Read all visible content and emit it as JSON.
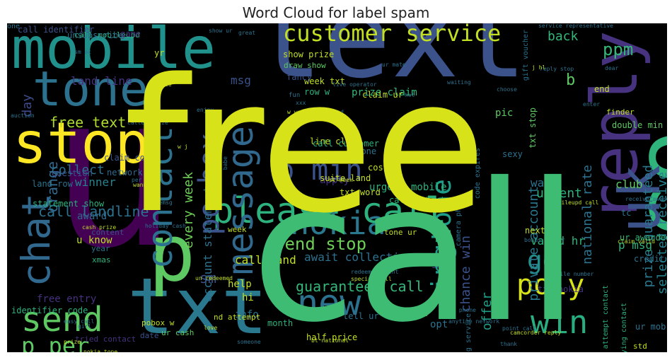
{
  "title": "Word Cloud for label spam",
  "words": [
    {
      "text": "free",
      "color": "#d8e219",
      "big": true
    },
    {
      "text": "call",
      "color": "#3fbc73",
      "big": true
    },
    {
      "text": "text",
      "color": "#3b528b"
    },
    {
      "text": "u",
      "color": "#440154"
    },
    {
      "text": "mobile",
      "color": "#21918c"
    },
    {
      "text": "txt",
      "color": "#2a788e"
    },
    {
      "text": "stop",
      "color": "#fde725"
    },
    {
      "text": "reply",
      "color": "#46327e"
    },
    {
      "text": "tone",
      "color": "#2c728e"
    },
    {
      "text": "co",
      "color": "#2fb47c"
    },
    {
      "text": "uk",
      "color": "#3b528b"
    },
    {
      "text": "p",
      "color": "#5ec962"
    },
    {
      "text": "please call",
      "color": "#2db27d"
    },
    {
      "text": "message",
      "color": "#31688e"
    },
    {
      "text": "nokia",
      "color": "#2a788e"
    },
    {
      "text": "new",
      "color": "#2c728e"
    },
    {
      "text": "send",
      "color": "#5ec962"
    },
    {
      "text": "chat",
      "color": "#31688e"
    },
    {
      "text": "contact",
      "color": "#2c728e"
    },
    {
      "text": "po box",
      "color": "#3b528b"
    },
    {
      "text": "p min",
      "color": "#3b528b"
    },
    {
      "text": "customer service",
      "color": "#c2df23"
    },
    {
      "text": "win",
      "color": "#28ae80"
    },
    {
      "text": "poly",
      "color": "#d8e219"
    },
    {
      "text": "go",
      "color": "#21918c"
    },
    {
      "text": "ringtone",
      "color": "#1f9e89"
    },
    {
      "text": "p per",
      "color": "#5ec962"
    },
    {
      "text": "ppm",
      "color": "#35b779"
    },
    {
      "text": "claim call",
      "color": "#2a788e"
    },
    {
      "text": "send stop",
      "color": "#6ece58"
    },
    {
      "text": "guaranteed call",
      "color": "#35b779"
    },
    {
      "text": "free text",
      "color": "#addc30"
    },
    {
      "text": "call landline",
      "color": "#2c728e"
    },
    {
      "text": "chance win",
      "color": "#3b528b"
    },
    {
      "text": "offer",
      "color": "#1f9e89"
    },
    {
      "text": "prize guaranteed",
      "color": "#2a788e"
    },
    {
      "text": "selected receive",
      "color": "#26828e"
    },
    {
      "text": "private account",
      "color": "#2a788e"
    },
    {
      "text": "national rate",
      "color": "#2c728e"
    },
    {
      "text": "every week",
      "color": "#6ece58"
    },
    {
      "text": "account statement",
      "color": "#2c728e"
    },
    {
      "text": "sm",
      "color": "#3b528b"
    },
    {
      "text": "orange",
      "color": "#31688e"
    },
    {
      "text": "collect",
      "color": "#2c728e"
    },
    {
      "text": "winner",
      "color": "#26828e"
    },
    {
      "text": "land line",
      "color": "#46327e"
    },
    {
      "text": "day",
      "color": "#3e4989"
    },
    {
      "text": "msg",
      "color": "#3b528b"
    },
    {
      "text": "urgent",
      "color": "#2db27d"
    },
    {
      "text": "club",
      "color": "#5ec962"
    },
    {
      "text": "want",
      "color": "#2c728e"
    },
    {
      "text": "valid hr",
      "color": "#2db27d"
    },
    {
      "text": "p msg",
      "color": "#2db27d"
    },
    {
      "text": "back",
      "color": "#35b779"
    },
    {
      "text": "b",
      "color": "#5ec962"
    },
    {
      "text": "call land",
      "color": "#c2df23"
    },
    {
      "text": "await collection",
      "color": "#2c728e"
    },
    {
      "text": "urgent mobile",
      "color": "#2db27d"
    },
    {
      "text": "prize claim",
      "color": "#35b779"
    },
    {
      "text": "name",
      "color": "#2db27d"
    },
    {
      "text": "pic",
      "color": "#5ec962"
    },
    {
      "text": "help",
      "color": "#c2df23"
    },
    {
      "text": "hi",
      "color": "#c2df23"
    },
    {
      "text": "award",
      "color": "#31688e"
    },
    {
      "text": "u know",
      "color": "#c2df23"
    },
    {
      "text": "free entry",
      "color": "#46327e"
    },
    {
      "text": "show prize",
      "color": "#c2df23"
    },
    {
      "text": "draw show",
      "color": "#5ec962"
    },
    {
      "text": "week txt",
      "color": "#c2df23"
    },
    {
      "text": "row w",
      "color": "#2db27d"
    },
    {
      "text": "line claim",
      "color": "#c2df23"
    },
    {
      "text": "call customer",
      "color": "#2db27d"
    },
    {
      "text": "claim code",
      "color": "#3b528b"
    },
    {
      "text": "network min",
      "color": "#31688e"
    },
    {
      "text": "question",
      "color": "#3b528b"
    },
    {
      "text": "land row",
      "color": "#2c728e"
    },
    {
      "text": "statement show",
      "color": "#2db27d"
    },
    {
      "text": "identifier code",
      "color": "#2db27d"
    },
    {
      "text": "call identifier",
      "color": "#3b528b"
    },
    {
      "text": "call mobileupd",
      "color": "#2db27d"
    },
    {
      "text": "unsubscribe",
      "color": "#2c728e"
    },
    {
      "text": "game",
      "color": "#46327e"
    },
    {
      "text": "yr",
      "color": "#c2df23"
    },
    {
      "text": "next",
      "color": "#c2df23"
    },
    {
      "text": "ur awarded",
      "color": "#35b779"
    },
    {
      "text": "tone ur",
      "color": "#c2df23"
    },
    {
      "text": "see",
      "color": "#3e4989"
    },
    {
      "text": "opt",
      "color": "#2c728e"
    },
    {
      "text": "sexy",
      "color": "#2c728e"
    },
    {
      "text": "phone",
      "color": "#2c728e"
    },
    {
      "text": "apply",
      "color": "#46327e"
    },
    {
      "text": "cost p",
      "color": "#c2df23"
    },
    {
      "text": "txt word",
      "color": "#c2df23"
    },
    {
      "text": "call optout",
      "color": "#2db27d"
    },
    {
      "text": "suite land",
      "color": "#c2df23"
    },
    {
      "text": "week",
      "color": "#c2df23"
    },
    {
      "text": "info",
      "color": "#2c728e"
    },
    {
      "text": "month",
      "color": "#2db27d"
    },
    {
      "text": "nd attempt",
      "color": "#c2df23"
    },
    {
      "text": "ur cash",
      "color": "#5ec962"
    },
    {
      "text": "pobox w",
      "color": "#c2df23"
    },
    {
      "text": "date",
      "color": "#3b528b"
    },
    {
      "text": "tried contact",
      "color": "#46327e"
    },
    {
      "text": "xmas",
      "color": "#2db27d"
    },
    {
      "text": "year",
      "color": "#2c728e"
    },
    {
      "text": "content",
      "color": "#3b528b"
    },
    {
      "text": "credit",
      "color": "#2c728e"
    },
    {
      "text": "top",
      "color": "#c2df23"
    },
    {
      "text": "std",
      "color": "#c2df23"
    },
    {
      "text": "ur mob",
      "color": "#2c728e"
    },
    {
      "text": "double min",
      "color": "#5ec962"
    },
    {
      "text": "finder",
      "color": "#c2df23"
    },
    {
      "text": "end",
      "color": "#c2df23"
    },
    {
      "text": "txt stop",
      "color": "#5ec962"
    },
    {
      "text": "claim ur",
      "color": "#c2df23"
    },
    {
      "text": "fancy",
      "color": "#3b528b"
    },
    {
      "text": "tell ur",
      "color": "#2c728e"
    },
    {
      "text": "half price",
      "color": "#c2df23"
    },
    {
      "text": "txt nokia",
      "color": "#46327e"
    },
    {
      "text": "trying contact",
      "color": "#2db27d"
    },
    {
      "text": "attempt contact",
      "color": "#2db27d"
    },
    {
      "text": "dating service",
      "color": "#2c728e"
    },
    {
      "text": "code expires",
      "color": "#2c728e"
    },
    {
      "text": "camera phone",
      "color": "#2c728e"
    },
    {
      "text": "gift voucher",
      "color": "#2c728e"
    },
    {
      "text": "service representative",
      "color": "#2c728e"
    },
    {
      "text": "live operator",
      "color": "#2c728e"
    },
    {
      "text": "service",
      "color": "#c2df23"
    },
    {
      "text": "reply stop",
      "color": "#2c728e"
    },
    {
      "text": "hot",
      "color": "#2c728e"
    },
    {
      "text": "waiting",
      "color": "#2c728e"
    },
    {
      "text": "choose",
      "color": "#2c728e"
    },
    {
      "text": "dear",
      "color": "#2c728e"
    },
    {
      "text": "enter",
      "color": "#2c728e"
    },
    {
      "text": "caller prize",
      "color": "#2c728e"
    },
    {
      "text": "valued",
      "color": "#2c728e"
    },
    {
      "text": "enjoy",
      "color": "#2c728e"
    },
    {
      "text": "hg suite",
      "color": "#c2df23"
    },
    {
      "text": "auction",
      "color": "#2c728e"
    },
    {
      "text": "line rental",
      "color": "#2c728e"
    },
    {
      "text": "st week",
      "color": "#c2df23"
    },
    {
      "text": "mobileupd call",
      "color": "#c2df23"
    },
    {
      "text": "bonus caller",
      "color": "#2c728e"
    },
    {
      "text": "claim valid",
      "color": "#c2df23"
    },
    {
      "text": "receive award",
      "color": "#2c728e"
    },
    {
      "text": "mobile number",
      "color": "#2c728e"
    },
    {
      "text": "camcorder reply",
      "color": "#c2df23"
    },
    {
      "text": "un redeemed",
      "color": "#c2df23"
    },
    {
      "text": "redeemed point",
      "color": "#2c728e"
    },
    {
      "text": "special call",
      "color": "#c2df23"
    },
    {
      "text": "new nokia",
      "color": "#c2df23"
    },
    {
      "text": "video phone",
      "color": "#2c728e"
    },
    {
      "text": "anytime network",
      "color": "#2c728e"
    },
    {
      "text": "point call",
      "color": "#2c728e"
    },
    {
      "text": "thank",
      "color": "#2c728e"
    },
    {
      "text": "love",
      "color": "#c2df23"
    },
    {
      "text": "someone",
      "color": "#2c728e"
    },
    {
      "text": "bt national",
      "color": "#c2df23"
    },
    {
      "text": "easy call",
      "color": "#2c728e"
    },
    {
      "text": "girl",
      "color": "#2c728e"
    },
    {
      "text": "nokia tone",
      "color": "#c2df23"
    },
    {
      "text": "urgent trying",
      "color": "#2c728e"
    },
    {
      "text": "prize",
      "color": "#c2df23"
    },
    {
      "text": "babe",
      "color": "#2c728e"
    },
    {
      "text": "holiday cash",
      "color": "#2c728e"
    },
    {
      "text": "cash prize",
      "color": "#c2df23"
    },
    {
      "text": "freemsg",
      "color": "#2c728e"
    },
    {
      "text": "per min",
      "color": "#2c728e"
    },
    {
      "text": "wanna",
      "color": "#c2df23"
    },
    {
      "text": "fun",
      "color": "#2c728e"
    },
    {
      "text": "xxx",
      "color": "#2c728e"
    },
    {
      "text": "w wq",
      "color": "#c2df23"
    },
    {
      "text": "w j",
      "color": "#c2df23"
    },
    {
      "text": "great",
      "color": "#2c728e"
    },
    {
      "text": "show ur",
      "color": "#2c728e"
    },
    {
      "text": "ur mate",
      "color": "#2c728e"
    },
    {
      "text": "sm ac",
      "color": "#2c728e"
    },
    {
      "text": "tc",
      "color": "#2c728e"
    },
    {
      "text": "x",
      "color": "#3b528b"
    },
    {
      "text": "j hl",
      "color": "#c2df23"
    },
    {
      "text": "one",
      "color": "#2c728e"
    }
  ]
}
